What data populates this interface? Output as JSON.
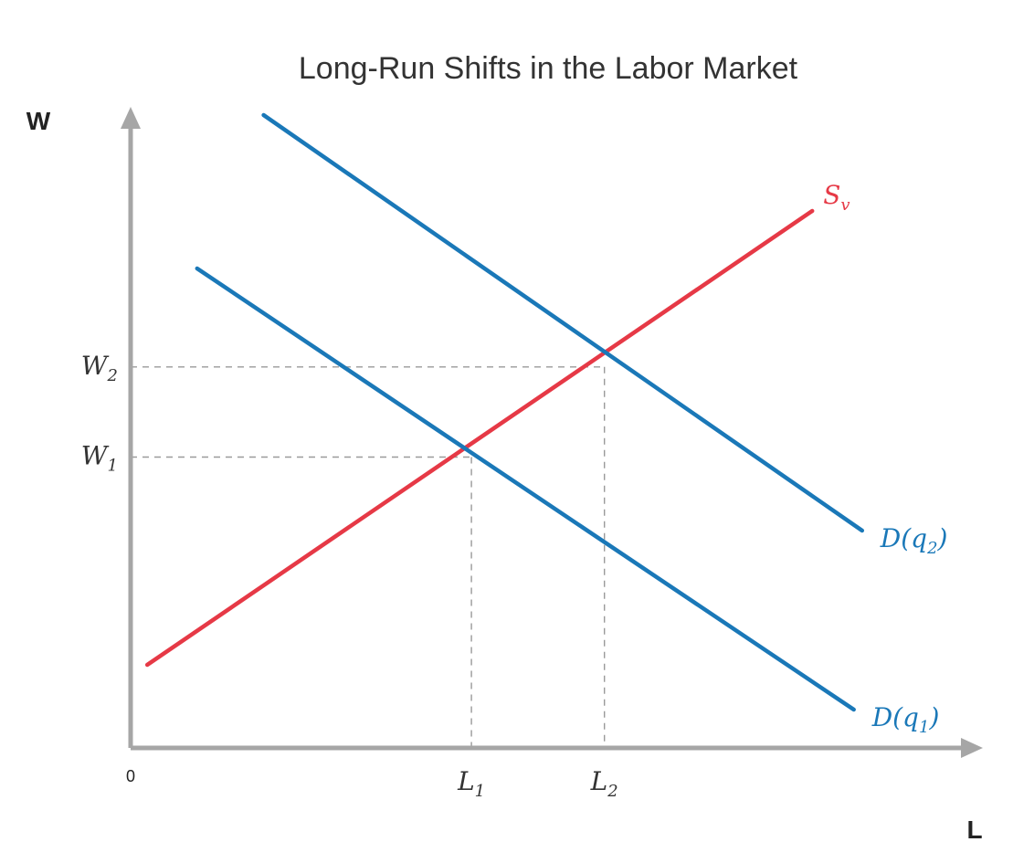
{
  "chart_data": {
    "type": "line",
    "title": "Long-Run Shifts in the Labor Market",
    "xlabel": "L",
    "ylabel": "W",
    "origin_label": "0",
    "xlim": [
      0,
      10
    ],
    "ylim": [
      0,
      10
    ],
    "grid": false,
    "colors": {
      "supply": "#e63946",
      "demand": "#1a78b8",
      "axis": "#a6a6a6",
      "guide": "#9a9a9a"
    },
    "series": [
      {
        "id": "supply",
        "label": "S",
        "label_sub": "v",
        "color": "#e63946",
        "x": [
          0.2,
          8.2
        ],
        "y": [
          1.3,
          8.4
        ]
      },
      {
        "id": "demand2",
        "label": "D(q",
        "label_sub": "2",
        "label_close": ")",
        "color": "#1a78b8",
        "x": [
          1.6,
          8.8
        ],
        "y": [
          9.9,
          3.4
        ]
      },
      {
        "id": "demand1",
        "label": "D(q",
        "label_sub": "1",
        "label_close": ")",
        "color": "#1a78b8",
        "x": [
          0.8,
          8.7
        ],
        "y": [
          7.5,
          0.6
        ]
      }
    ],
    "equilibria": [
      {
        "x_label": "L",
        "x_sub": "1",
        "y_label": "W",
        "y_sub": "1",
        "x": 4.1,
        "y": 4.55
      },
      {
        "x_label": "L",
        "x_sub": "2",
        "y_label": "W",
        "y_sub": "2",
        "x": 5.7,
        "y": 5.96
      }
    ]
  }
}
